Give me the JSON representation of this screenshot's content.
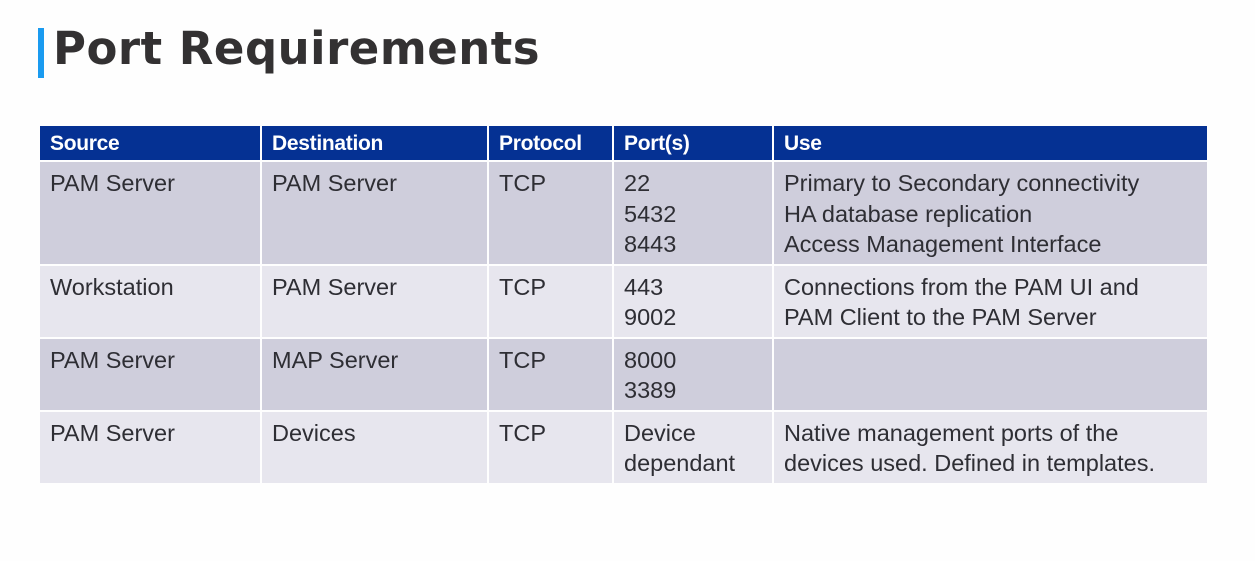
{
  "title": "Port Requirements",
  "colors": {
    "header_bg": "#053193",
    "accent": "#1a9bf0",
    "row_odd": "#cfcedc",
    "row_even": "#e7e6ee"
  },
  "table": {
    "headers": [
      "Source",
      "Destination",
      "Protocol",
      "Port(s)",
      "Use"
    ],
    "rows": [
      {
        "source": "PAM Server",
        "destination": "PAM Server",
        "protocol": "TCP",
        "ports": [
          "22",
          "5432",
          "8443"
        ],
        "use": [
          "Primary to Secondary connectivity",
          "HA database replication",
          "Access Management Interface"
        ]
      },
      {
        "source": "Workstation",
        "destination": "PAM Server",
        "protocol": "TCP",
        "ports": [
          "443",
          "9002"
        ],
        "use": [
          "Connections from the PAM UI and",
          "PAM Client to the PAM Server"
        ]
      },
      {
        "source": "PAM Server",
        "destination": "MAP Server",
        "protocol": "TCP",
        "ports": [
          "8000",
          "3389"
        ],
        "use": []
      },
      {
        "source": "PAM Server",
        "destination": "Devices",
        "protocol": "TCP",
        "ports": [
          "Device",
          "dependant"
        ],
        "use": [
          "Native management ports of the",
          "devices used. Defined in templates."
        ]
      }
    ]
  }
}
